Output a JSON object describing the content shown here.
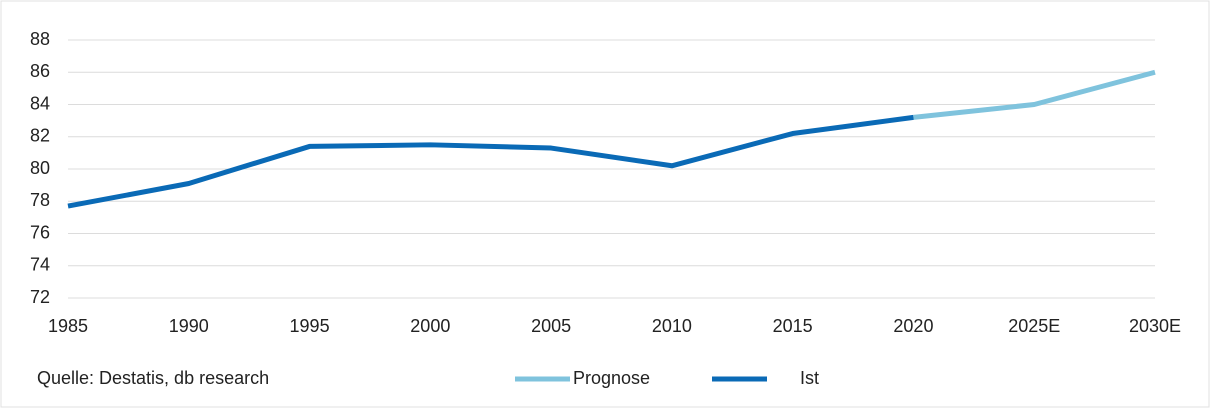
{
  "chart_data": {
    "type": "line",
    "categories": [
      "1985",
      "1990",
      "1995",
      "2000",
      "2005",
      "2010",
      "2015",
      "2020",
      "2025E",
      "2030E"
    ],
    "series": [
      {
        "name": "Prognose",
        "color": "#7fc3dd",
        "values": [
          null,
          null,
          null,
          null,
          null,
          null,
          null,
          83.2,
          84.0,
          86.0
        ]
      },
      {
        "name": "Ist",
        "color": "#0a6ab6",
        "values": [
          77.7,
          79.1,
          81.4,
          81.5,
          81.3,
          80.2,
          82.2,
          83.2,
          null,
          null
        ]
      }
    ],
    "ylim": [
      72,
      88
    ],
    "yticks": [
      72,
      74,
      76,
      78,
      80,
      82,
      84,
      86,
      88
    ],
    "grid": true,
    "source": "Quelle: Destatis, db research",
    "legend": "bottom"
  }
}
